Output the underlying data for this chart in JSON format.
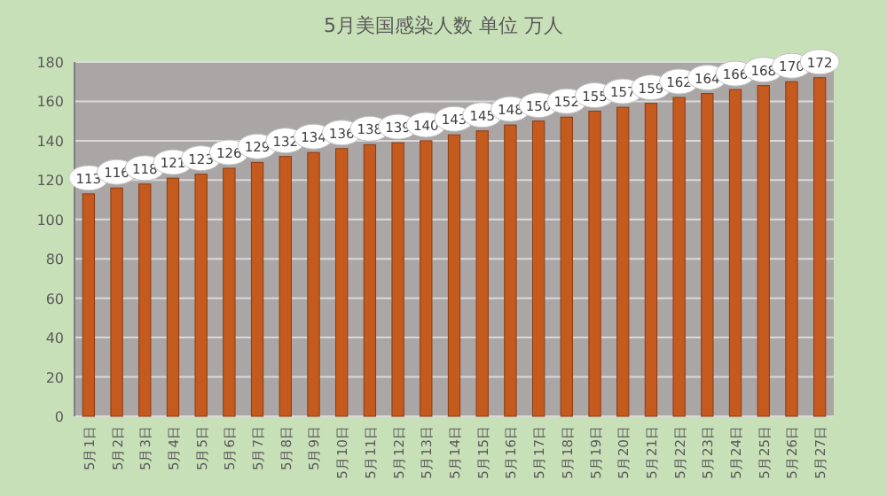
{
  "chart_data": {
    "type": "bar",
    "title": "5月美国感染人数 单位 万人",
    "categories": [
      "5月1日",
      "5月2日",
      "5月3日",
      "5月4日",
      "5月5日",
      "5月6日",
      "5月7日",
      "5月8日",
      "5月9日",
      "5月10日",
      "5月11日",
      "5月12日",
      "5月13日",
      "5月14日",
      "5月15日",
      "5月16日",
      "5月17日",
      "5月18日",
      "5月19日",
      "5月20日",
      "5月21日",
      "5月22日",
      "5月23日",
      "5月24日",
      "5月25日",
      "5月26日",
      "5月27日"
    ],
    "values": [
      113,
      116,
      118,
      121,
      123,
      126,
      129,
      132,
      134,
      136,
      138,
      139,
      140,
      143,
      145,
      148,
      150,
      152,
      155,
      157,
      159,
      162,
      164,
      166,
      168,
      170,
      172
    ],
    "color": "#c55a1f",
    "ylim": [
      0,
      180
    ],
    "yticks": [
      0,
      20,
      40,
      60,
      80,
      100,
      120,
      140,
      160,
      180
    ],
    "grid": "y",
    "data_labels": true
  }
}
